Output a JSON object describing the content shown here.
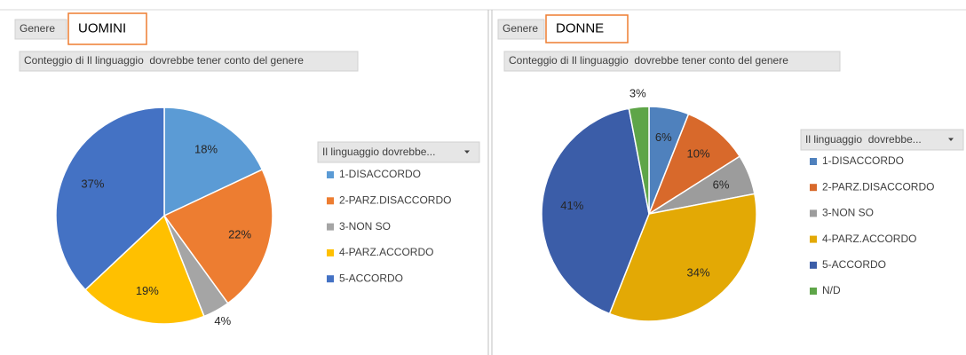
{
  "chart_data": [
    {
      "type": "pie",
      "filter_label": "Genere",
      "title": "UOMINI",
      "subtitle": "Conteggio di Il linguaggio  dovrebbe tener conto del genere",
      "legend_title": "Il linguaggio dovrebbe...",
      "categories": [
        "1-DISACCORDO",
        "2-PARZ.DISACCORDO",
        "3-NON SO",
        "4-PARZ.ACCORDO",
        "5-ACCORDO"
      ],
      "values": [
        18,
        22,
        4,
        19,
        37
      ],
      "value_labels": [
        "18%",
        "22%",
        "4%",
        "19%",
        "37%"
      ],
      "colors": [
        "#5B9BD5",
        "#ED7D31",
        "#A5A5A5",
        "#FFC000",
        "#4472C4"
      ]
    },
    {
      "type": "pie",
      "filter_label": "Genere",
      "title": "DONNE",
      "subtitle": "Conteggio di Il linguaggio  dovrebbe tener conto del genere",
      "legend_title": "Il linguaggio  dovrebbe...",
      "categories": [
        "1-DISACCORDO",
        "2-PARZ.DISACCORDO",
        "3-NON SO",
        "4-PARZ.ACCORDO",
        "5-ACCORDO",
        "N/D"
      ],
      "values": [
        6,
        10,
        6,
        34,
        41,
        3
      ],
      "value_labels": [
        "6%",
        "10%",
        "6%",
        "34%",
        "41%",
        "3%"
      ],
      "colors": [
        "#4F81BD",
        "#D8692B",
        "#9C9C9C",
        "#E3A905",
        "#3B5DA8",
        "#5EA548"
      ]
    }
  ]
}
